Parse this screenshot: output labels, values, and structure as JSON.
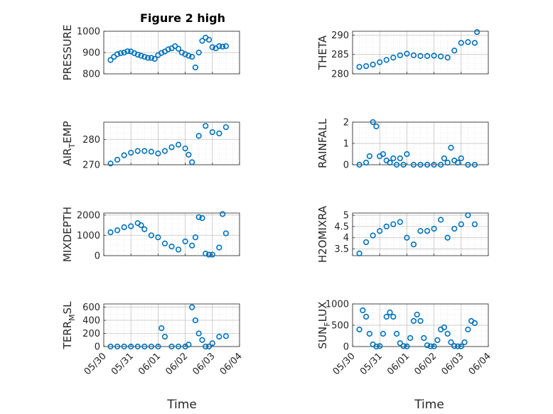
{
  "figure": {
    "title": "Figure 2 high",
    "xlabel": "Time",
    "date_ticks": [
      "05/30",
      "05/31",
      "06/01",
      "06/02",
      "06/03",
      "06/04"
    ]
  },
  "colors": {
    "marker": "#0072BD",
    "grid": "#d9d9d9",
    "axis": "#262626"
  },
  "chart_data": [
    {
      "type": "scatter",
      "marker": "open-circle",
      "grid": true,
      "ylabel": "PRESSURE",
      "ylim": [
        800,
        1000
      ],
      "yticks": [
        "800",
        "900",
        "1000"
      ],
      "x": [
        "05/30 06:00",
        "05/30 09:00",
        "05/30 12:00",
        "05/30 15:00",
        "05/30 18:00",
        "05/30 21:00",
        "05/31 00:00",
        "05/31 03:00",
        "05/31 06:00",
        "05/31 09:00",
        "05/31 12:00",
        "05/31 15:00",
        "05/31 18:00",
        "05/31 21:00",
        "06/01 00:00",
        "06/01 03:00",
        "06/01 06:00",
        "06/01 09:00",
        "06/01 12:00",
        "06/01 15:00",
        "06/01 18:00",
        "06/01 21:00",
        "06/02 00:00",
        "06/02 03:00",
        "06/02 06:00",
        "06/02 09:00",
        "06/02 12:00",
        "06/02 15:00",
        "06/02 18:00",
        "06/02 21:00",
        "06/03 00:00",
        "06/03 03:00",
        "06/03 06:00",
        "06/03 09:00",
        "06/03 12:00"
      ],
      "y": [
        865,
        880,
        892,
        897,
        900,
        906,
        905,
        897,
        890,
        885,
        880,
        875,
        875,
        870,
        888,
        898,
        905,
        915,
        920,
        930,
        918,
        900,
        892,
        885,
        880,
        830,
        900,
        955,
        970,
        960,
        925,
        920,
        930,
        928,
        930
      ]
    },
    {
      "type": "scatter",
      "marker": "open-circle",
      "grid": true,
      "ylabel": "THETA",
      "ylim": [
        280,
        291
      ],
      "yticks": [
        "280",
        "285",
        "290"
      ],
      "x": [
        "05/30 06:00",
        "05/30 12:00",
        "05/30 18:00",
        "05/31 00:00",
        "05/31 06:00",
        "05/31 12:00",
        "05/31 18:00",
        "06/01 00:00",
        "06/01 06:00",
        "06/01 12:00",
        "06/01 18:00",
        "06/02 00:00",
        "06/02 06:00",
        "06/02 12:00",
        "06/02 18:00",
        "06/03 00:00",
        "06/03 06:00",
        "06/03 12:00",
        "06/03 14:00"
      ],
      "y": [
        281.8,
        282.0,
        282.4,
        283.0,
        283.6,
        284.2,
        284.8,
        285.2,
        284.8,
        284.6,
        284.6,
        284.7,
        284.5,
        284.2,
        286.0,
        288.0,
        288.2,
        288.0,
        290.8
      ]
    },
    {
      "type": "scatter",
      "marker": "open-circle",
      "grid": true,
      "ylabel": "AIR_TEMP",
      "ylim": [
        270,
        287
      ],
      "yticks": [
        "270",
        "280"
      ],
      "x": [
        "05/30 06:00",
        "05/30 12:00",
        "05/30 18:00",
        "05/31 00:00",
        "05/31 06:00",
        "05/31 12:00",
        "05/31 18:00",
        "06/01 00:00",
        "06/01 06:00",
        "06/01 12:00",
        "06/01 18:00",
        "06/02 00:00",
        "06/02 03:00",
        "06/02 06:00",
        "06/02 12:00",
        "06/02 18:00",
        "06/03 00:00",
        "06/03 06:00",
        "06/03 12:00"
      ],
      "y": [
        270.5,
        272.0,
        273.8,
        274.8,
        275.5,
        275.5,
        275.2,
        274.5,
        275.5,
        277.0,
        278.0,
        276.5,
        274.0,
        271.0,
        281.5,
        285.5,
        283.0,
        282.5,
        285.0
      ]
    },
    {
      "type": "scatter",
      "marker": "open-circle",
      "grid": true,
      "ylabel": "RAINFALL",
      "ylim": [
        0,
        2
      ],
      "yticks": [
        "0",
        "1",
        "2"
      ],
      "x": [
        "05/30 06:00",
        "05/30 12:00",
        "05/30 15:00",
        "05/30 18:00",
        "05/30 21:00",
        "05/31 00:00",
        "05/31 03:00",
        "05/31 06:00",
        "05/31 09:00",
        "05/31 12:00",
        "05/31 15:00",
        "05/31 18:00",
        "05/31 21:00",
        "06/01 00:00",
        "06/01 06:00",
        "06/01 12:00",
        "06/01 18:00",
        "06/02 00:00",
        "06/02 06:00",
        "06/02 09:00",
        "06/02 12:00",
        "06/02 15:00",
        "06/02 18:00",
        "06/02 21:00",
        "06/03 00:00",
        "06/03 06:00",
        "06/03 12:00"
      ],
      "y": [
        0.0,
        0.1,
        0.4,
        2.0,
        1.8,
        0.4,
        0.5,
        0.2,
        0.1,
        0.3,
        0.0,
        0.3,
        0.0,
        0.5,
        0.0,
        0.0,
        0.0,
        0.0,
        0.0,
        0.3,
        0.1,
        0.8,
        0.2,
        0.1,
        0.3,
        0.0,
        0.0
      ]
    },
    {
      "type": "scatter",
      "marker": "open-circle",
      "grid": true,
      "ylabel": "MIXDEPTH",
      "ylim": [
        0,
        2100
      ],
      "yticks": [
        "0",
        "1000",
        "2000"
      ],
      "x": [
        "05/30 06:00",
        "05/30 12:00",
        "05/30 18:00",
        "05/31 00:00",
        "05/31 06:00",
        "05/31 09:00",
        "05/31 12:00",
        "05/31 18:00",
        "06/01 00:00",
        "06/01 06:00",
        "06/01 12:00",
        "06/01 18:00",
        "06/02 00:00",
        "06/02 06:00",
        "06/02 09:00",
        "06/02 12:00",
        "06/02 15:00",
        "06/02 18:00",
        "06/02 21:00",
        "06/03 00:00",
        "06/03 06:00",
        "06/03 09:00",
        "06/03 12:00"
      ],
      "y": [
        1150,
        1250,
        1400,
        1450,
        1600,
        1500,
        1300,
        1000,
        900,
        600,
        450,
        300,
        700,
        500,
        900,
        1900,
        1850,
        100,
        50,
        50,
        400,
        2050,
        1100
      ]
    },
    {
      "type": "scatter",
      "marker": "open-circle",
      "grid": true,
      "ylabel": "H2OMIXRA",
      "ylim": [
        3.2,
        5.1
      ],
      "yticks": [
        "3.5",
        "4",
        "4.5",
        "5"
      ],
      "x": [
        "05/30 06:00",
        "05/30 12:00",
        "05/30 18:00",
        "05/31 00:00",
        "05/31 06:00",
        "05/31 12:00",
        "05/31 18:00",
        "06/01 00:00",
        "06/01 06:00",
        "06/01 12:00",
        "06/01 18:00",
        "06/02 00:00",
        "06/02 06:00",
        "06/02 12:00",
        "06/02 18:00",
        "06/03 00:00",
        "06/03 06:00",
        "06/03 12:00"
      ],
      "y": [
        3.3,
        3.8,
        4.1,
        4.3,
        4.5,
        4.6,
        4.7,
        4.0,
        3.7,
        4.3,
        4.3,
        4.4,
        4.8,
        4.0,
        4.4,
        4.6,
        5.0,
        4.6
      ]
    },
    {
      "type": "scatter",
      "marker": "open-circle",
      "grid": true,
      "ylabel": "TERR_MSL",
      "ylim": [
        0,
        650
      ],
      "yticks": [
        "0",
        "200",
        "400",
        "600"
      ],
      "x": [
        "05/30 06:00",
        "05/30 12:00",
        "05/30 18:00",
        "05/31 00:00",
        "05/31 06:00",
        "05/31 12:00",
        "05/31 18:00",
        "06/01 00:00",
        "06/01 03:00",
        "06/01 06:00",
        "06/01 12:00",
        "06/01 18:00",
        "06/02 00:00",
        "06/02 03:00",
        "06/02 06:00",
        "06/02 09:00",
        "06/02 12:00",
        "06/02 15:00",
        "06/02 18:00",
        "06/02 21:00",
        "06/03 00:00",
        "06/03 06:00",
        "06/03 12:00"
      ],
      "y": [
        0,
        0,
        0,
        0,
        0,
        0,
        0,
        0,
        280,
        150,
        0,
        0,
        0,
        30,
        600,
        400,
        200,
        100,
        0,
        0,
        50,
        150,
        160
      ]
    },
    {
      "type": "scatter",
      "marker": "open-circle",
      "grid": true,
      "ylabel": "SUN_FLUX",
      "ylim": [
        0,
        1000
      ],
      "yticks": [
        "0",
        "500",
        "1000"
      ],
      "x": [
        "05/30 06:00",
        "05/30 09:00",
        "05/30 12:00",
        "05/30 15:00",
        "05/30 18:00",
        "05/30 21:00",
        "05/31 00:00",
        "05/31 03:00",
        "05/31 06:00",
        "05/31 09:00",
        "05/31 12:00",
        "05/31 15:00",
        "05/31 18:00",
        "05/31 21:00",
        "06/01 00:00",
        "06/01 03:00",
        "06/01 06:00",
        "06/01 09:00",
        "06/01 12:00",
        "06/01 15:00",
        "06/01 18:00",
        "06/01 21:00",
        "06/02 00:00",
        "06/02 03:00",
        "06/02 06:00",
        "06/02 09:00",
        "06/02 12:00",
        "06/02 15:00",
        "06/02 18:00",
        "06/02 21:00",
        "06/03 00:00",
        "06/03 03:00",
        "06/03 06:00",
        "06/03 09:00",
        "06/03 12:00"
      ],
      "y": [
        400,
        850,
        700,
        300,
        50,
        0,
        10,
        300,
        700,
        800,
        700,
        300,
        80,
        10,
        5,
        200,
        600,
        750,
        600,
        200,
        30,
        5,
        5,
        150,
        400,
        450,
        300,
        100,
        10,
        5,
        5,
        100,
        400,
        600,
        550
      ]
    }
  ]
}
